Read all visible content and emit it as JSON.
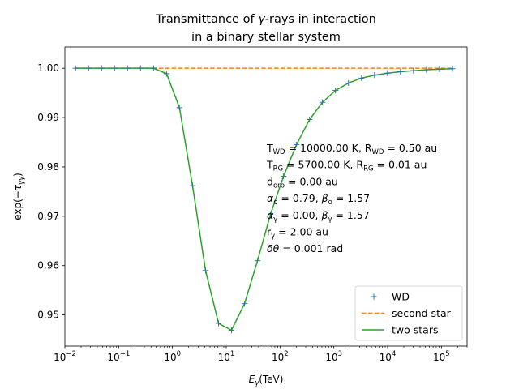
{
  "chart_data": {
    "type": "line",
    "title": [
      "Transmittance of ",
      "γ",
      "-rays in interaction",
      "in a binary stellar system"
    ],
    "xlabel": {
      "main": "E",
      "sub": "γ",
      "unit": "(TeV)"
    },
    "ylabel": {
      "prefix": "exp(−",
      "tau": "τ",
      "sub": "γγ",
      "suffix": ")"
    },
    "xscale": "log",
    "xlim": [
      0.01,
      300000
    ],
    "ylim": [
      0.9437,
      1.0043
    ],
    "xticks": [
      {
        "value": 0.01,
        "mant": "10",
        "exp": "−2"
      },
      {
        "value": 0.1,
        "mant": "10",
        "exp": "−1"
      },
      {
        "value": 1,
        "mant": "10",
        "exp": "0"
      },
      {
        "value": 10,
        "mant": "10",
        "exp": "1"
      },
      {
        "value": 100,
        "mant": "10",
        "exp": "2"
      },
      {
        "value": 1000,
        "mant": "10",
        "exp": "3"
      },
      {
        "value": 10000,
        "mant": "10",
        "exp": "4"
      },
      {
        "value": 100000,
        "mant": "10",
        "exp": "5"
      }
    ],
    "yticks": [
      {
        "value": 0.95,
        "label": "0.95"
      },
      {
        "value": 0.96,
        "label": "0.96"
      },
      {
        "value": 0.97,
        "label": "0.97"
      },
      {
        "value": 0.98,
        "label": "0.98"
      },
      {
        "value": 0.99,
        "label": "0.99"
      },
      {
        "value": 1.0,
        "label": "1.00"
      }
    ],
    "grid": false,
    "legend_position": "lower-right",
    "series": [
      {
        "name": "WD",
        "style": "markers",
        "marker": "+",
        "color": "#1f77b4",
        "x": [
          0.0158,
          0.0276,
          0.0481,
          0.0839,
          0.146,
          0.255,
          0.445,
          0.776,
          1.35,
          2.36,
          4.12,
          7.19,
          12.5,
          21.9,
          38.1,
          66.5,
          116,
          202,
          353,
          615,
          1073,
          1871,
          3264,
          5693,
          9929,
          17317,
          30203,
          52677,
          91875,
          160240
        ],
        "y": [
          1.0,
          1.0,
          1.0,
          1.0,
          1.0,
          1.0,
          1.0,
          0.9989,
          0.992,
          0.9762,
          0.959,
          0.9483,
          0.9469,
          0.9523,
          0.961,
          0.9704,
          0.9781,
          0.9845,
          0.9896,
          0.9931,
          0.9955,
          0.997,
          0.998,
          0.9986,
          0.999,
          0.9993,
          0.9995,
          0.9997,
          0.9998,
          0.9999
        ]
      },
      {
        "name": "second star",
        "style": "dashed",
        "color": "#ff7f0e",
        "x": [
          0.0158,
          160240
        ],
        "y": [
          1.0,
          1.0
        ]
      },
      {
        "name": "two stars",
        "style": "solid",
        "color": "#2ca02c",
        "x": [
          0.0158,
          0.0276,
          0.0481,
          0.0839,
          0.146,
          0.255,
          0.445,
          0.776,
          1.35,
          2.36,
          4.12,
          7.19,
          12.5,
          21.9,
          38.1,
          66.5,
          116,
          202,
          353,
          615,
          1073,
          1871,
          3264,
          5693,
          9929,
          17317,
          30203,
          52677,
          91875,
          160240
        ],
        "y": [
          1.0,
          1.0,
          1.0,
          1.0,
          1.0,
          1.0,
          1.0,
          0.9989,
          0.992,
          0.9762,
          0.959,
          0.9483,
          0.9469,
          0.9523,
          0.961,
          0.9704,
          0.9781,
          0.9845,
          0.9896,
          0.9931,
          0.9955,
          0.997,
          0.998,
          0.9986,
          0.999,
          0.9993,
          0.9995,
          0.9997,
          0.9998,
          0.9999
        ]
      }
    ],
    "annotation": [
      [
        {
          "t": "T"
        },
        {
          "t": "WD",
          "sub": true
        },
        {
          "t": " = 10000.00 K, R"
        },
        {
          "t": "WD",
          "sub": true
        },
        {
          "t": " = 0.50 au"
        }
      ],
      [
        {
          "t": "T"
        },
        {
          "t": "RG",
          "sub": true
        },
        {
          "t": " = 5700.00 K, R"
        },
        {
          "t": "RG",
          "sub": true
        },
        {
          "t": " =  0.01 au"
        }
      ],
      [
        {
          "t": "d"
        },
        {
          "t": "orb",
          "sub": true
        },
        {
          "t": " = 0.00 au"
        }
      ],
      [
        {
          "t": "α",
          "it": true
        },
        {
          "t": "o",
          "sub": true
        },
        {
          "t": " = 0.79, "
        },
        {
          "t": "β",
          "it": true
        },
        {
          "t": "o",
          "sub": true
        },
        {
          "t": " = 1.57"
        }
      ],
      [
        {
          "t": "α",
          "it": true
        },
        {
          "t": "γ",
          "sub": true
        },
        {
          "t": " = 0.00, "
        },
        {
          "t": "β",
          "it": true
        },
        {
          "t": "γ",
          "sub": true
        },
        {
          "t": " = 1.57"
        }
      ],
      [
        {
          "t": "r"
        },
        {
          "t": "γ",
          "sub": true
        },
        {
          "t": " = 2.00 au"
        }
      ],
      [
        {
          "t": "δθ",
          "it": true
        },
        {
          "t": " = 0.001 rad"
        }
      ]
    ]
  }
}
